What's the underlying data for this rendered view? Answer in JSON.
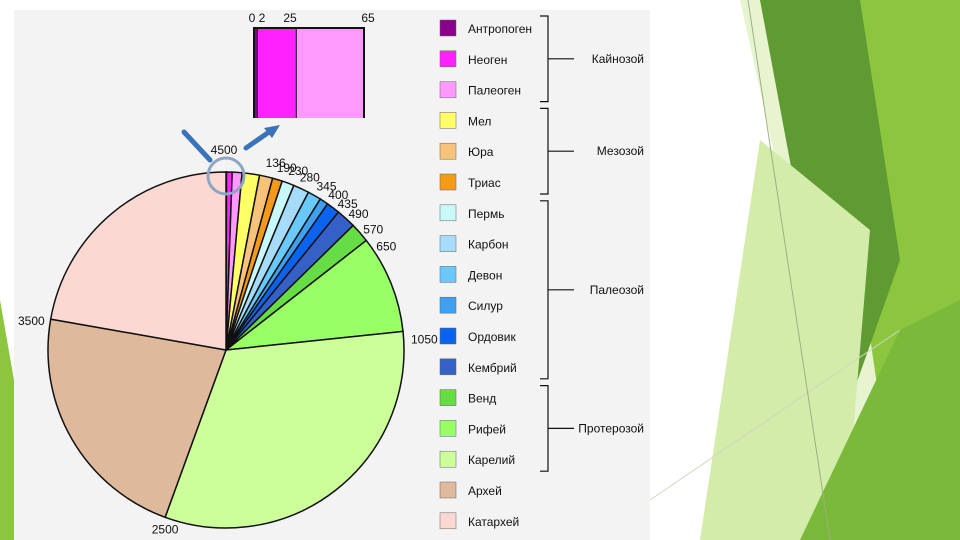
{
  "chart_data": {
    "type": "pie",
    "title": "",
    "segments": [
      {
        "name": "Антропоген",
        "start": 0,
        "end": 2,
        "color": "#8b008b"
      },
      {
        "name": "Неоген",
        "start": 2,
        "end": 25,
        "color": "#ff22ff"
      },
      {
        "name": "Палеоген",
        "start": 25,
        "end": 65,
        "color": "#ff99ff"
      },
      {
        "name": "Мел",
        "start": 65,
        "end": 136,
        "color": "#ffff66"
      },
      {
        "name": "Юра",
        "start": 136,
        "end": 190,
        "color": "#f7c279"
      },
      {
        "name": "Триас",
        "start": 190,
        "end": 230,
        "color": "#f59a18"
      },
      {
        "name": "Пермь",
        "start": 230,
        "end": 280,
        "color": "#c8f8f8"
      },
      {
        "name": "Карбон",
        "start": 280,
        "end": 345,
        "color": "#a6dcfa"
      },
      {
        "name": "Девон",
        "start": 345,
        "end": 400,
        "color": "#69c9fa"
      },
      {
        "name": "Силур",
        "start": 400,
        "end": 435,
        "color": "#3ea0f0"
      },
      {
        "name": "Ордовик",
        "start": 435,
        "end": 490,
        "color": "#0a64f0"
      },
      {
        "name": "Кембрий",
        "start": 490,
        "end": 570,
        "color": "#3560c8"
      },
      {
        "name": "Венд",
        "start": 570,
        "end": 650,
        "color": "#66dd44"
      },
      {
        "name": "Рифей",
        "start": 650,
        "end": 1050,
        "color": "#99ff66"
      },
      {
        "name": "Карелий",
        "start": 1050,
        "end": 2500,
        "color": "#ccff99"
      },
      {
        "name": "Архей",
        "start": 2500,
        "end": 3500,
        "color": "#deb99c"
      },
      {
        "name": "Катархей",
        "start": 3500,
        "end": 4500,
        "color": "#fcd8d2"
      }
    ],
    "inset": {
      "ticks": [
        "0",
        "2",
        "25",
        "65"
      ],
      "segments": [
        {
          "name": "Антропоген",
          "start": 0,
          "end": 2,
          "color": "#8b008b"
        },
        {
          "name": "Неоген",
          "start": 2,
          "end": 25,
          "color": "#ff22ff"
        },
        {
          "name": "Палеоген",
          "start": 25,
          "end": 65,
          "color": "#ff99ff"
        }
      ]
    },
    "boundary_labels": [
      "4500",
      "136",
      "190",
      "230",
      "280",
      "345",
      "400",
      "435",
      "490",
      "570",
      "650",
      "1050",
      "2500",
      "3500"
    ],
    "legend": [
      {
        "label": "Антропоген",
        "color": "#8b008b"
      },
      {
        "label": "Неоген",
        "color": "#ff22ff"
      },
      {
        "label": "Палеоген",
        "color": "#ff99ff"
      },
      {
        "label": "Мел",
        "color": "#ffff66"
      },
      {
        "label": "Юра",
        "color": "#f7c279"
      },
      {
        "label": "Триас",
        "color": "#f59a18"
      },
      {
        "label": "Пермь",
        "color": "#c8f8f8"
      },
      {
        "label": "Карбон",
        "color": "#a6dcfa"
      },
      {
        "label": "Девон",
        "color": "#69c9fa"
      },
      {
        "label": "Силур",
        "color": "#3ea0f0"
      },
      {
        "label": "Ордовик",
        "color": "#0a64f0"
      },
      {
        "label": "Кембрий",
        "color": "#3560c8"
      },
      {
        "label": "Венд",
        "color": "#66dd44"
      },
      {
        "label": "Рифей",
        "color": "#99ff66"
      },
      {
        "label": "Карелий",
        "color": "#ccff99"
      },
      {
        "label": "Архей",
        "color": "#deb99c"
      },
      {
        "label": "Катархей",
        "color": "#fcd8d2"
      }
    ],
    "eras": [
      {
        "label": "Кайнозой",
        "from": 0,
        "to": 2
      },
      {
        "label": "Мезозой",
        "from": 3,
        "to": 5
      },
      {
        "label": "Палеозой",
        "from": 6,
        "to": 11
      },
      {
        "label": "Протерозой",
        "from": 12,
        "to": 14
      }
    ],
    "legend_placement": "right"
  },
  "colors": {
    "slide_green_dark": "#5f9a33",
    "slide_green_mid": "#8cc63f",
    "slide_green_light": "#d4ecaa",
    "arrow_blue": "#3a73b8"
  }
}
